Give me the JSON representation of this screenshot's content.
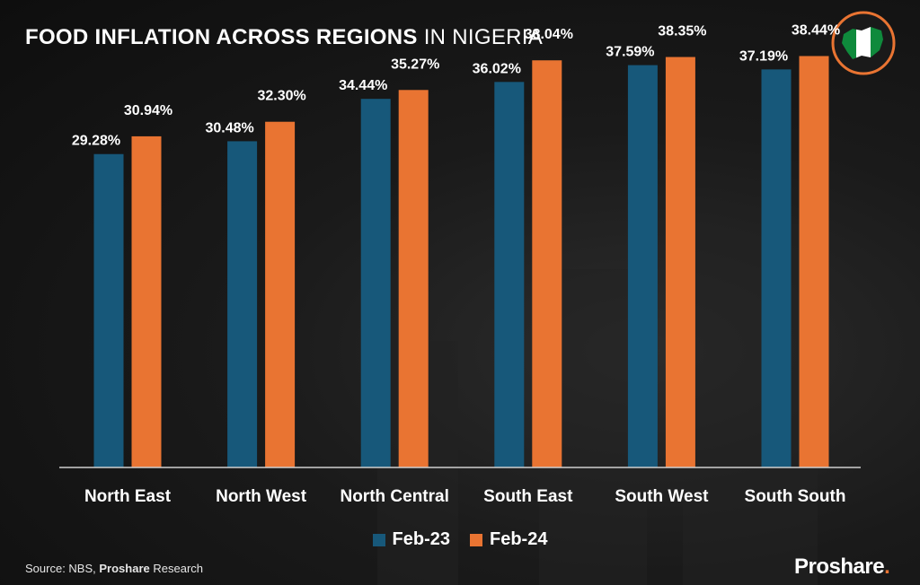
{
  "title": {
    "bold": "FOOD INFLATION ACROSS REGIONS",
    "light": "IN NIGERIA"
  },
  "colors": {
    "feb23": "#17587a",
    "feb24": "#e97432",
    "flag_green": "#0f8a3c",
    "flag_white": "#ffffff",
    "badge_ring": "#e97432"
  },
  "icons": {
    "badge": "nigeria-map-flag-icon"
  },
  "chart_data": {
    "type": "bar",
    "categories": [
      "North East",
      "North West",
      "North Central",
      "South East",
      "South West",
      "South South"
    ],
    "series": [
      {
        "name": "Feb-23",
        "values": [
          29.28,
          30.48,
          34.44,
          36.02,
          37.59,
          37.19
        ],
        "labels": [
          "29.28%",
          "30.48%",
          "34.44%",
          "36.02%",
          "37.59%",
          "37.19%"
        ]
      },
      {
        "name": "Feb-24",
        "values": [
          30.94,
          32.3,
          35.27,
          38.04,
          38.35,
          38.44
        ],
        "labels": [
          "30.94%",
          "32.30%",
          "35.27%",
          "38.04%",
          "38.35%",
          "38.44%"
        ]
      }
    ],
    "ylim": [
      0,
      42
    ],
    "grid": false,
    "legend": "bottom-center"
  },
  "source": {
    "prefix": "Source: NBS, ",
    "bold": "Proshare",
    "suffix": " Research"
  },
  "brand": {
    "name": "Proshare",
    "dot": "."
  }
}
